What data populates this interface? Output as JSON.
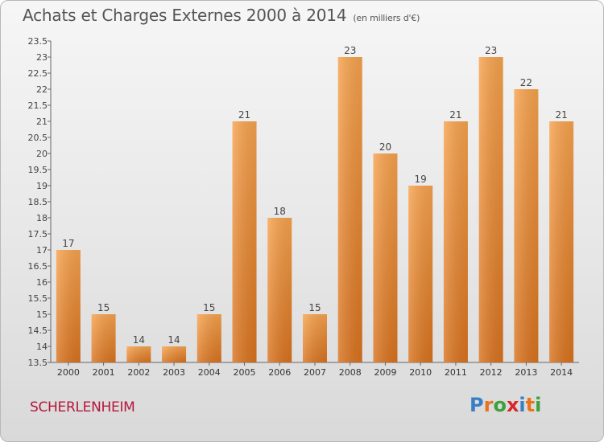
{
  "header": {
    "title": "Achats et Charges Externes 2000 à 2014",
    "subtitle": "(en milliers d'€)"
  },
  "commune": "SCHERLENHEIM",
  "logo": {
    "letters": [
      "P",
      "r",
      "o",
      "x",
      "i",
      "t",
      "i"
    ],
    "colors": [
      "#3a7fc6",
      "#e8731a",
      "#3aa23a",
      "#d9262b",
      "#3a7fc6",
      "#e8731a",
      "#3aa23a"
    ]
  },
  "chart_data": {
    "type": "bar",
    "title": "Achats et Charges Externes 2000 à 2014",
    "subtitle": "(en milliers d'€)",
    "xlabel": "",
    "ylabel": "",
    "categories": [
      "2000",
      "2001",
      "2002",
      "2003",
      "2004",
      "2005",
      "2006",
      "2007",
      "2008",
      "2009",
      "2010",
      "2011",
      "2012",
      "2013",
      "2014"
    ],
    "values": [
      17,
      15,
      14,
      14,
      15,
      21,
      18,
      15,
      23,
      20,
      19,
      21,
      23,
      22,
      21
    ],
    "data_labels": [
      "17",
      "15",
      "14",
      "14",
      "15",
      "21",
      "18",
      "15",
      "23",
      "20",
      "19",
      "21",
      "23",
      "22",
      "21"
    ],
    "ylim": [
      13.5,
      23.5
    ],
    "yticks": [
      "13.5",
      "14",
      "14.5",
      "15",
      "15.5",
      "16",
      "16.5",
      "17",
      "17.5",
      "18",
      "18.5",
      "19",
      "19.5",
      "20",
      "20.5",
      "21",
      "21.5",
      "22",
      "22.5",
      "23",
      "23.5"
    ],
    "grid": "none",
    "bar_color_top": "#f7a34e",
    "bar_color_bottom": "#d9731f"
  }
}
